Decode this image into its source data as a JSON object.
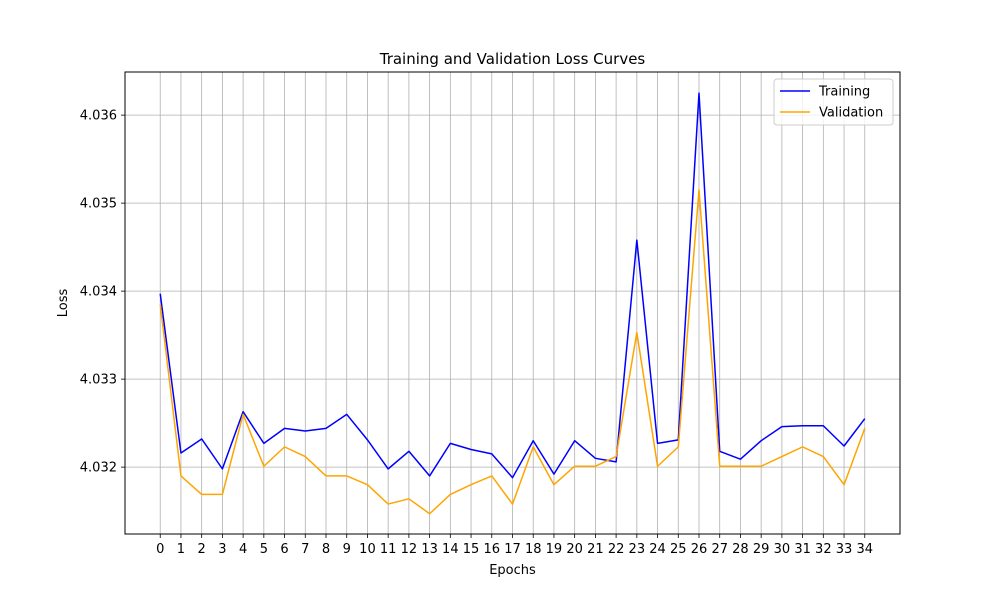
{
  "chart_data": {
    "type": "line",
    "title": "Training and Validation Loss Curves",
    "xlabel": "Epochs",
    "ylabel": "Loss",
    "x": [
      0,
      1,
      2,
      3,
      4,
      5,
      6,
      7,
      8,
      9,
      10,
      11,
      12,
      13,
      14,
      15,
      16,
      17,
      18,
      19,
      20,
      21,
      22,
      23,
      24,
      25,
      26,
      27,
      28,
      29,
      30,
      31,
      32,
      33,
      34
    ],
    "xlim": [
      -1.7,
      35.7
    ],
    "ylim": [
      4.03124,
      4.03649
    ],
    "yticks": [
      4.032,
      4.033,
      4.034,
      4.035,
      4.036
    ],
    "ytick_labels": [
      "4.032",
      "4.033",
      "4.034",
      "4.035",
      "4.036"
    ],
    "grid": true,
    "legend_position": "top-right",
    "series": [
      {
        "name": "Training",
        "color": "#0000ff",
        "values": [
          4.03397,
          4.03216,
          4.03232,
          4.03198,
          4.03263,
          4.03227,
          4.03244,
          4.03241,
          4.03244,
          4.0326,
          4.03231,
          4.03198,
          4.03218,
          4.0319,
          4.03227,
          4.0322,
          4.03215,
          4.03188,
          4.0323,
          4.03192,
          4.0323,
          4.0321,
          4.03206,
          4.03458,
          4.03227,
          4.03231,
          4.03625,
          4.03218,
          4.03209,
          4.0323,
          4.03246,
          4.03247,
          4.03247,
          4.03224,
          4.03255
        ]
      },
      {
        "name": "Validation",
        "color": "#ffa500",
        "values": [
          4.03385,
          4.0319,
          4.03169,
          4.03169,
          4.0326,
          4.03201,
          4.03223,
          4.03212,
          4.0319,
          4.0319,
          4.0318,
          4.03158,
          4.03164,
          4.03147,
          4.03169,
          4.0318,
          4.0319,
          4.03158,
          4.03223,
          4.0318,
          4.03201,
          4.03201,
          4.03212,
          4.03353,
          4.03201,
          4.03223,
          4.03515,
          4.03201,
          4.03201,
          4.03201,
          4.03212,
          4.03223,
          4.03212,
          4.0318,
          4.03244
        ]
      }
    ]
  }
}
